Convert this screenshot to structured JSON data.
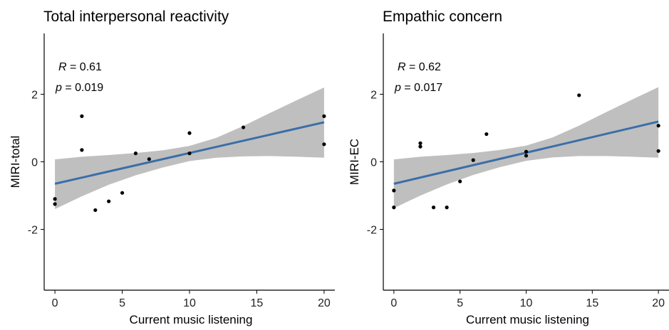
{
  "chart_data": [
    {
      "type": "scatter",
      "title": "Total interpersonal reactivity",
      "xlabel": "Current music listening",
      "ylabel": "MIRI-total",
      "xlim": [
        -0.8,
        20.8
      ],
      "ylim": [
        -3.8,
        3.8
      ],
      "xticks": [
        0,
        5,
        10,
        15,
        20
      ],
      "yticks": [
        -2,
        0,
        2
      ],
      "grid": false,
      "stats": {
        "r_label": "R",
        "r_value": "= 0.61",
        "p_label": "p",
        "p_value": "= 0.019"
      },
      "points": [
        {
          "x": 0,
          "y": -1.1
        },
        {
          "x": 0,
          "y": -1.25
        },
        {
          "x": 2,
          "y": 1.35
        },
        {
          "x": 2,
          "y": 0.35
        },
        {
          "x": 3,
          "y": -1.43
        },
        {
          "x": 4,
          "y": -1.17
        },
        {
          "x": 5,
          "y": -0.92
        },
        {
          "x": 6,
          "y": 0.25
        },
        {
          "x": 7,
          "y": 0.08
        },
        {
          "x": 10,
          "y": 0.85
        },
        {
          "x": 10,
          "y": 0.25
        },
        {
          "x": 14,
          "y": 1.02
        },
        {
          "x": 20,
          "y": 1.35
        },
        {
          "x": 20,
          "y": 0.52
        }
      ],
      "fit": {
        "x": [
          0,
          20
        ],
        "y": [
          -0.65,
          1.17
        ],
        "color": "#3a6ea8"
      },
      "ci": {
        "x": [
          0,
          2,
          4,
          6,
          8,
          10,
          12,
          14,
          16,
          18,
          20
        ],
        "lower": [
          -1.4,
          -1.02,
          -0.68,
          -0.4,
          -0.17,
          0.02,
          0.12,
          0.16,
          0.17,
          0.15,
          0.12
        ],
        "upper": [
          0.07,
          0.15,
          0.2,
          0.26,
          0.34,
          0.47,
          0.71,
          1.06,
          1.45,
          1.83,
          2.2
        ]
      }
    },
    {
      "type": "scatter",
      "title": "Empathic concern",
      "xlabel": "Current music listening",
      "ylabel": "MIRI-EC",
      "xlim": [
        -0.8,
        20.8
      ],
      "ylim": [
        -3.8,
        3.8
      ],
      "xticks": [
        0,
        5,
        10,
        15,
        20
      ],
      "yticks": [
        -2,
        0,
        2
      ],
      "grid": false,
      "stats": {
        "r_label": "R",
        "r_value": "= 0.62",
        "p_label": "p",
        "p_value": "= 0.017"
      },
      "points": [
        {
          "x": 0,
          "y": -0.85
        },
        {
          "x": 0,
          "y": -1.35
        },
        {
          "x": 2,
          "y": 0.55
        },
        {
          "x": 2,
          "y": 0.45
        },
        {
          "x": 3,
          "y": -1.35
        },
        {
          "x": 4,
          "y": -1.35
        },
        {
          "x": 5,
          "y": -0.58
        },
        {
          "x": 6,
          "y": 0.05
        },
        {
          "x": 7,
          "y": 0.82
        },
        {
          "x": 10,
          "y": 0.3
        },
        {
          "x": 10,
          "y": 0.18
        },
        {
          "x": 14,
          "y": 1.97
        },
        {
          "x": 20,
          "y": 1.07
        },
        {
          "x": 20,
          "y": 0.32
        }
      ],
      "fit": {
        "x": [
          0,
          20
        ],
        "y": [
          -0.65,
          1.19
        ],
        "color": "#3a6ea8"
      },
      "ci": {
        "x": [
          0,
          2,
          4,
          6,
          8,
          10,
          12,
          14,
          16,
          18,
          20
        ],
        "lower": [
          -1.37,
          -1.0,
          -0.67,
          -0.39,
          -0.16,
          0.03,
          0.13,
          0.17,
          0.17,
          0.15,
          0.12
        ],
        "upper": [
          0.07,
          0.15,
          0.2,
          0.26,
          0.35,
          0.48,
          0.72,
          1.07,
          1.46,
          1.84,
          2.21
        ]
      }
    }
  ]
}
